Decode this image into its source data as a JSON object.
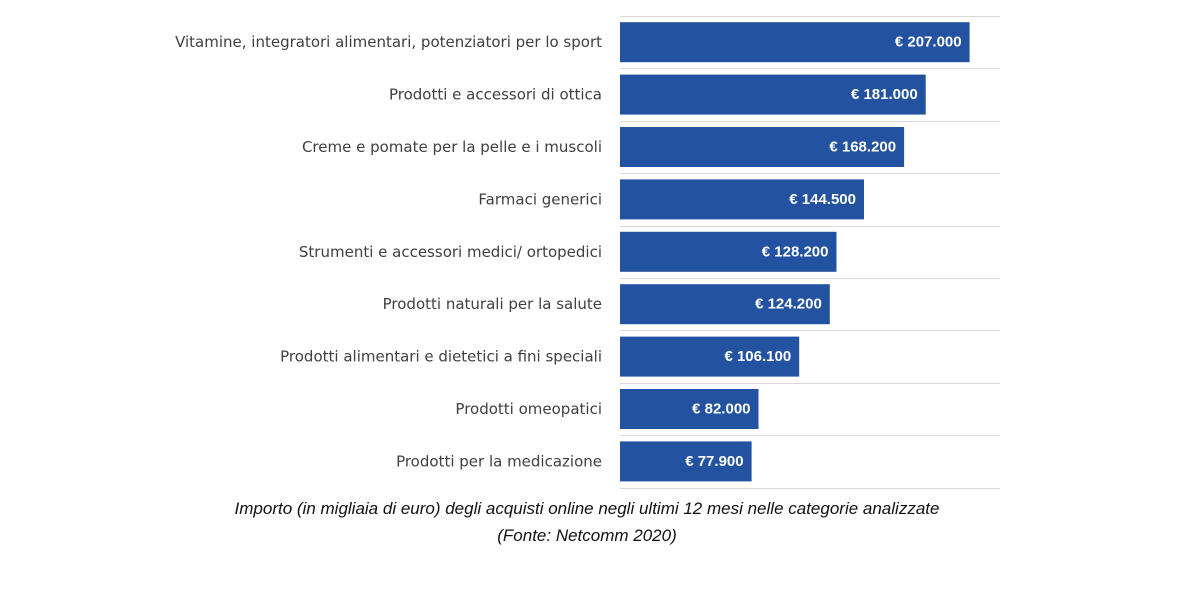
{
  "chart_data": {
    "type": "bar",
    "orientation": "horizontal",
    "categories": [
      "Vitamine, integratori alimentari, potenziatori per lo sport",
      "Prodotti e accessori di ottica",
      "Creme e pomate per la pelle e i muscoli",
      "Farmaci generici",
      "Strumenti e accessori medici/ ortopedici",
      "Prodotti naturali per la salute",
      "Prodotti alimentari e dietetici a fini speciali",
      "Prodotti omeopatici",
      "Prodotti per la medicazione"
    ],
    "values": [
      207000,
      181000,
      168200,
      144500,
      128200,
      124200,
      106100,
      82000,
      77900
    ],
    "value_labels": [
      "€ 207.000",
      "€ 181.000",
      "€ 168.200",
      "€ 144.500",
      "€ 128.200",
      "€ 124.200",
      "€ 106.100",
      "€ 82.000",
      "€ 77.900"
    ],
    "xlim": [
      0,
      225000
    ],
    "grid": true,
    "title": "",
    "xlabel": "",
    "ylabel": "",
    "bar_color": "#2353a0",
    "grid_color": "#d9d9d9"
  },
  "caption": {
    "line1": "Importo (in migliaia di euro) degli acquisti online negli ultimi 12 mesi nelle categorie analizzate",
    "line2": "(Fonte: Netcomm 2020)"
  }
}
